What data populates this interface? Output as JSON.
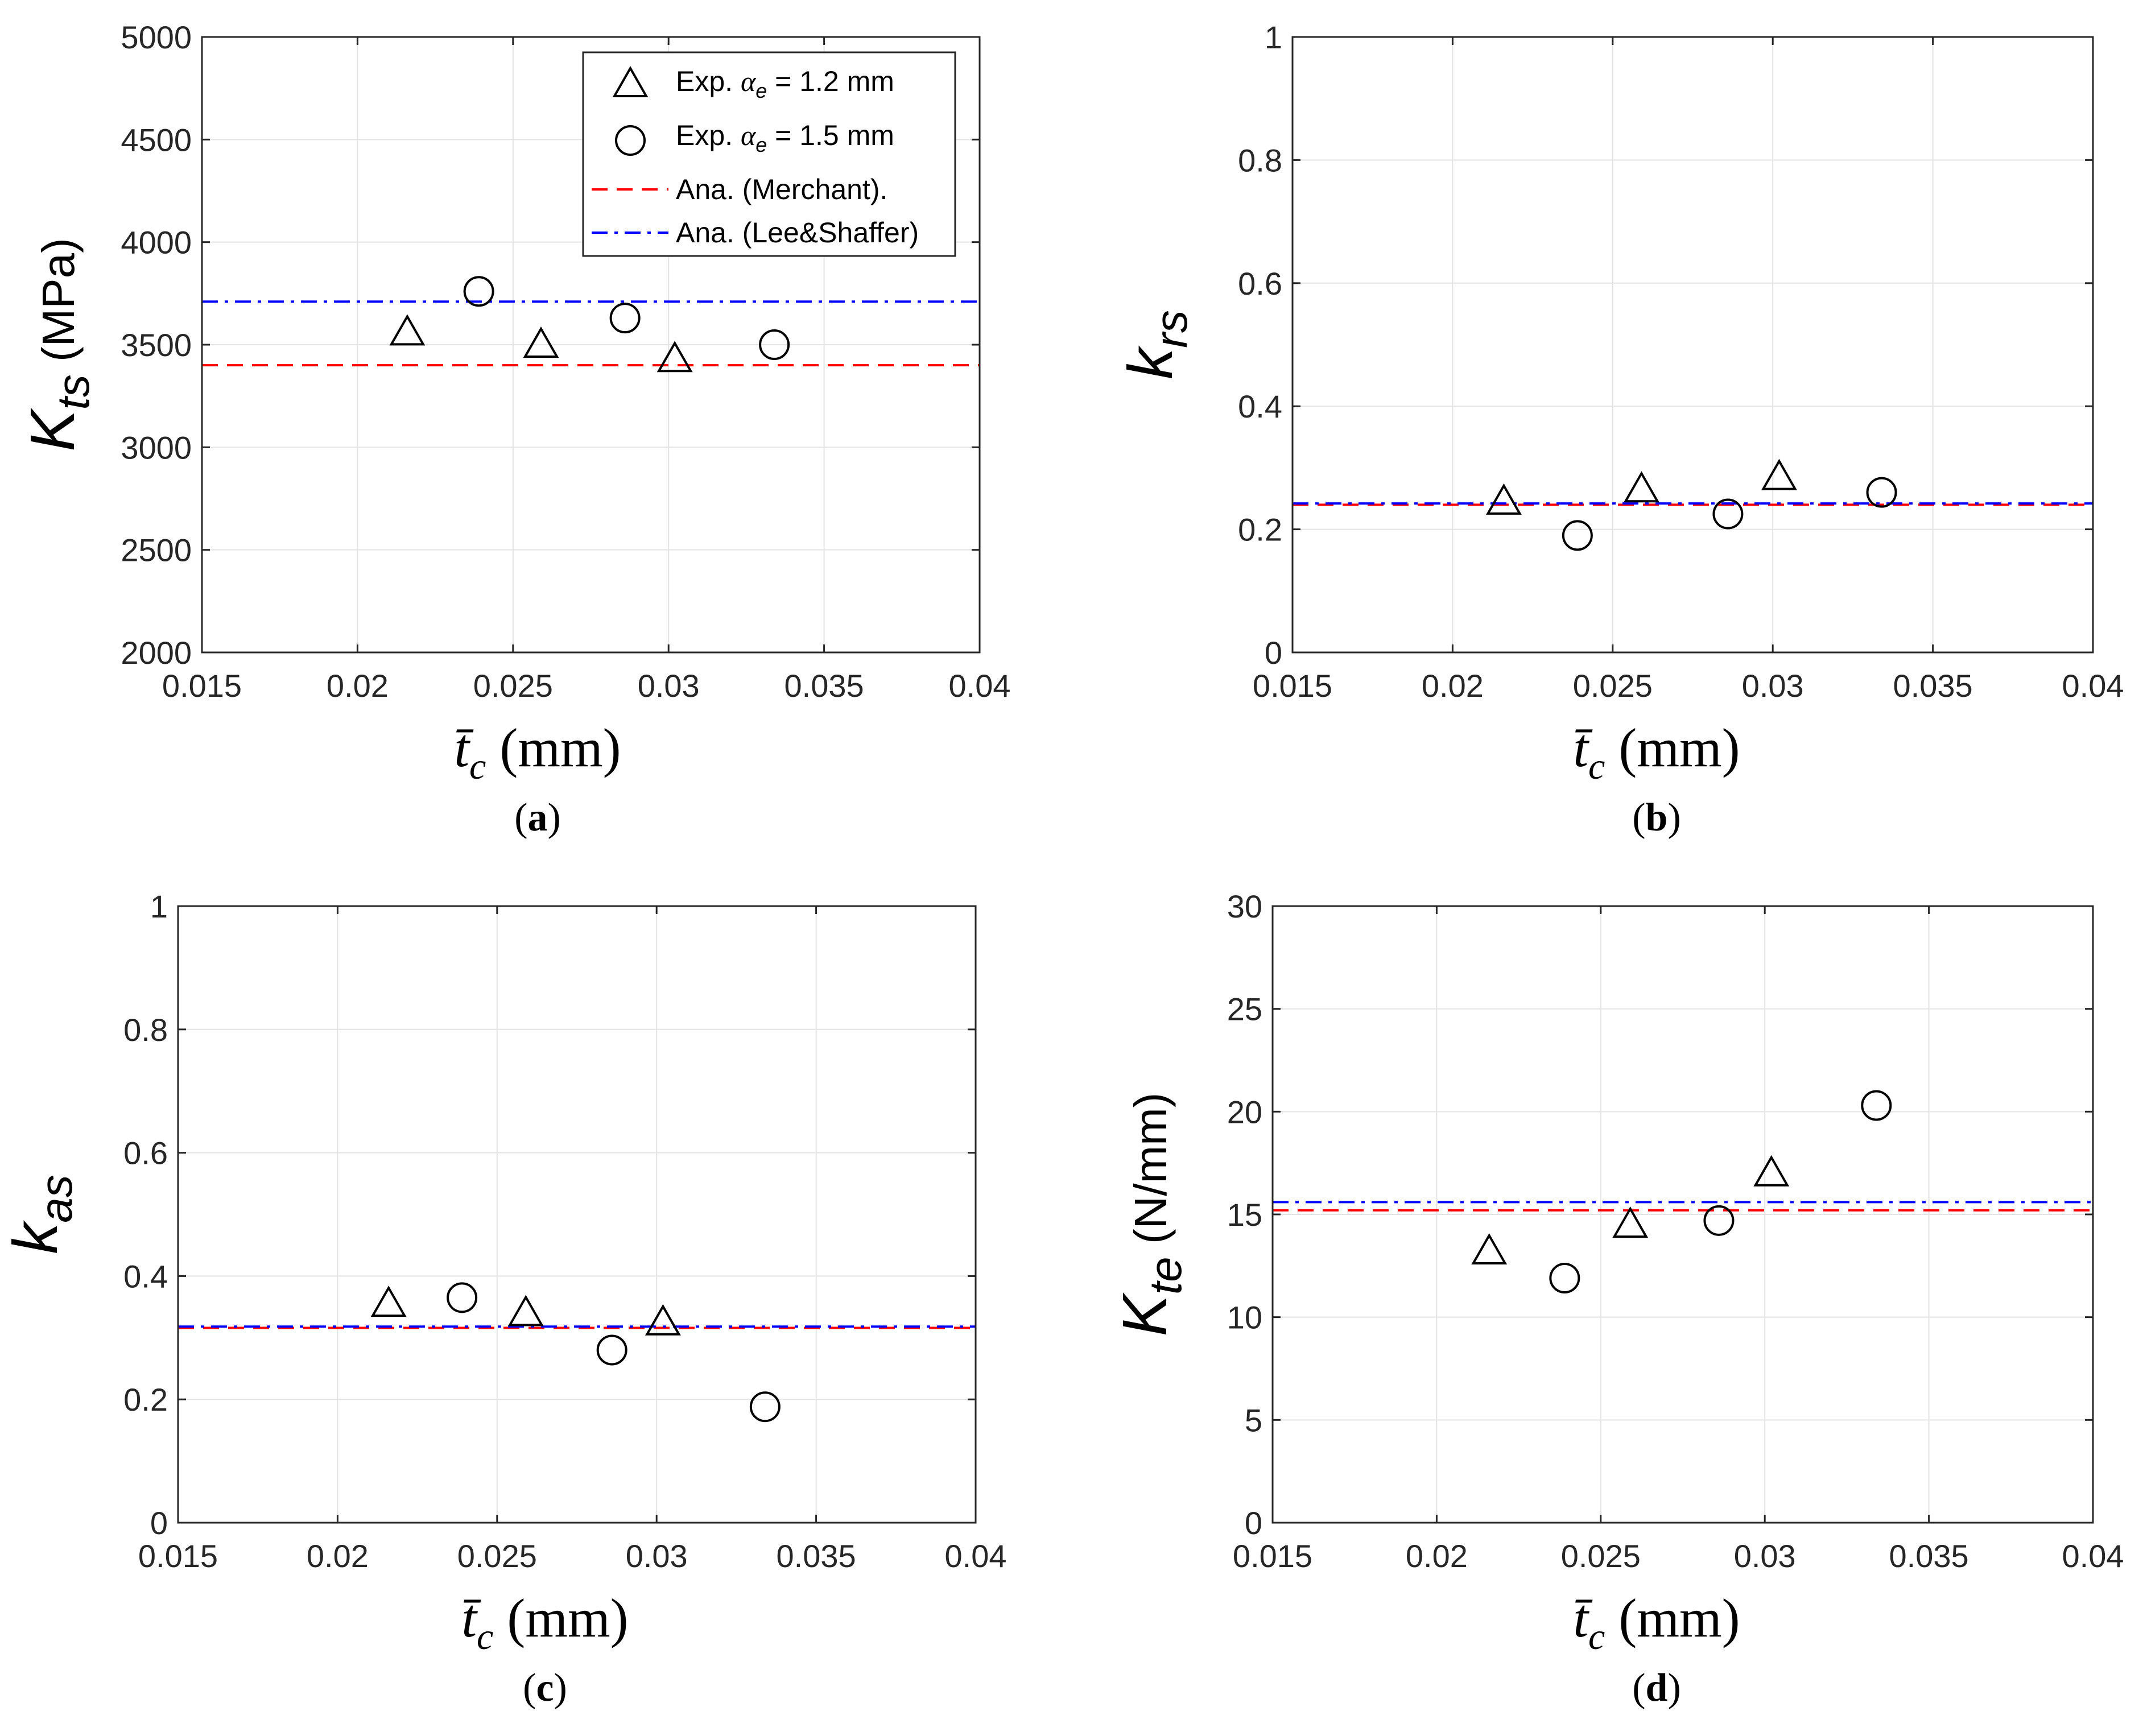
{
  "legend": {
    "triangle": {
      "pre": "Exp. ",
      "sym": "α",
      "sub": "e",
      "post": " = 1.2 mm"
    },
    "circle": {
      "pre": "Exp. ",
      "sym": "α",
      "sub": "e",
      "post": " = 1.5 mm"
    },
    "merchant": "Ana. (Merchant).",
    "lee": "Ana. (Lee&Shaffer)"
  },
  "colors": {
    "merchant": "#ff0000",
    "lee": "#0000ff",
    "markers": "#000000"
  },
  "chart_data": [
    {
      "id": "a",
      "type": "scatter",
      "caption": "a",
      "xlabel": {
        "sym": "t̄",
        "sub": "c",
        "unit": "(mm)"
      },
      "ylabel": {
        "sym": "K",
        "sub": "ts",
        "unit": "(MPa)"
      },
      "xlim": [
        0.015,
        0.04
      ],
      "ylim": [
        2000,
        5000
      ],
      "xticks": [
        0.015,
        0.02,
        0.025,
        0.03,
        0.035,
        0.04
      ],
      "xtick_labels": [
        "0.015",
        "0.02",
        "0.025",
        "0.03",
        "0.035",
        "0.04"
      ],
      "yticks": [
        2000,
        2500,
        3000,
        3500,
        4000,
        4500,
        5000
      ],
      "ytick_labels": [
        "2000",
        "2500",
        "3000",
        "3500",
        "4000",
        "4500",
        "5000"
      ],
      "grid": true,
      "legend": "top-right",
      "series": [
        {
          "name": "Exp. αe = 1.2 mm",
          "marker": "triangle",
          "x": [
            0.0216,
            0.0259,
            0.0302
          ],
          "y": [
            3560,
            3500,
            3430
          ]
        },
        {
          "name": "Exp. αe = 1.5 mm",
          "marker": "circle",
          "x": [
            0.0239,
            0.0286,
            0.0334
          ],
          "y": [
            3760,
            3630,
            3500
          ]
        },
        {
          "name": "Ana. (Merchant).",
          "line": "dashed",
          "y": 3400
        },
        {
          "name": "Ana. (Lee&Shaffer)",
          "line": "dashdot",
          "y": 3710
        }
      ]
    },
    {
      "id": "b",
      "type": "scatter",
      "caption": "b",
      "xlabel": {
        "sym": "t̄",
        "sub": "c",
        "unit": "(mm)"
      },
      "ylabel": {
        "sym": "k",
        "sub": "rs",
        "unit": ""
      },
      "xlim": [
        0.015,
        0.04
      ],
      "ylim": [
        0,
        1
      ],
      "xticks": [
        0.015,
        0.02,
        0.025,
        0.03,
        0.035,
        0.04
      ],
      "xtick_labels": [
        "0.015",
        "0.02",
        "0.025",
        "0.03",
        "0.035",
        "0.04"
      ],
      "yticks": [
        0,
        0.2,
        0.4,
        0.6,
        0.8,
        1
      ],
      "ytick_labels": [
        "0",
        "0.2",
        "0.4",
        "0.6",
        "0.8",
        "1"
      ],
      "grid": true,
      "series": [
        {
          "name": "Exp. αe = 1.2 mm",
          "marker": "triangle",
          "x": [
            0.0216,
            0.0259,
            0.0302
          ],
          "y": [
            0.245,
            0.265,
            0.285
          ]
        },
        {
          "name": "Exp. αe = 1.5 mm",
          "marker": "circle",
          "x": [
            0.0239,
            0.0286,
            0.0334
          ],
          "y": [
            0.19,
            0.225,
            0.26
          ]
        },
        {
          "name": "Ana. (Merchant).",
          "line": "dashed",
          "y": 0.24
        },
        {
          "name": "Ana. (Lee&Shaffer)",
          "line": "dashdot",
          "y": 0.242
        }
      ]
    },
    {
      "id": "c",
      "type": "scatter",
      "caption": "c",
      "xlabel": {
        "sym": "t̄",
        "sub": "c",
        "unit": "(mm)"
      },
      "ylabel": {
        "sym": "k",
        "sub": "as",
        "unit": ""
      },
      "xlim": [
        0.015,
        0.04
      ],
      "ylim": [
        0,
        1
      ],
      "xticks": [
        0.015,
        0.02,
        0.025,
        0.03,
        0.035,
        0.04
      ],
      "xtick_labels": [
        "0.015",
        "0.02",
        "0.025",
        "0.03",
        "0.035",
        "0.04"
      ],
      "yticks": [
        0,
        0.2,
        0.4,
        0.6,
        0.8,
        1
      ],
      "ytick_labels": [
        "0",
        "0.2",
        "0.4",
        "0.6",
        "0.8",
        "1"
      ],
      "grid": true,
      "series": [
        {
          "name": "Exp. αe = 1.2 mm",
          "marker": "triangle",
          "x": [
            0.0216,
            0.0259,
            0.0302
          ],
          "y": [
            0.355,
            0.34,
            0.325
          ]
        },
        {
          "name": "Exp. αe = 1.5 mm",
          "marker": "circle",
          "x": [
            0.0239,
            0.0286,
            0.0334
          ],
          "y": [
            0.365,
            0.28,
            0.188
          ]
        },
        {
          "name": "Ana. (Merchant).",
          "line": "dashed",
          "y": 0.316
        },
        {
          "name": "Ana. (Lee&Shaffer)",
          "line": "dashdot",
          "y": 0.318
        }
      ]
    },
    {
      "id": "d",
      "type": "scatter",
      "caption": "d",
      "xlabel": {
        "sym": "t̄",
        "sub": "c",
        "unit": "(mm)"
      },
      "ylabel": {
        "sym": "K",
        "sub": "te",
        "unit": "(N/mm)"
      },
      "xlim": [
        0.015,
        0.04
      ],
      "ylim": [
        0,
        30
      ],
      "xticks": [
        0.015,
        0.02,
        0.025,
        0.03,
        0.035,
        0.04
      ],
      "xtick_labels": [
        "0.015",
        "0.02",
        "0.025",
        "0.03",
        "0.035",
        "0.04"
      ],
      "yticks": [
        0,
        5,
        10,
        15,
        20,
        25,
        30
      ],
      "ytick_labels": [
        "0",
        "5",
        "10",
        "15",
        "20",
        "25",
        "30"
      ],
      "grid": true,
      "series": [
        {
          "name": "Exp. αe = 1.2 mm",
          "marker": "triangle",
          "x": [
            0.0216,
            0.0259,
            0.0302
          ],
          "y": [
            13.2,
            14.5,
            17.0
          ]
        },
        {
          "name": "Exp. αe = 1.5 mm",
          "marker": "circle",
          "x": [
            0.0239,
            0.0286,
            0.0334
          ],
          "y": [
            11.9,
            14.7,
            20.3
          ]
        },
        {
          "name": "Ana. (Merchant).",
          "line": "dashed",
          "y": 15.2
        },
        {
          "name": "Ana. (Lee&Shaffer)",
          "line": "dashdot",
          "y": 15.6
        }
      ]
    }
  ]
}
